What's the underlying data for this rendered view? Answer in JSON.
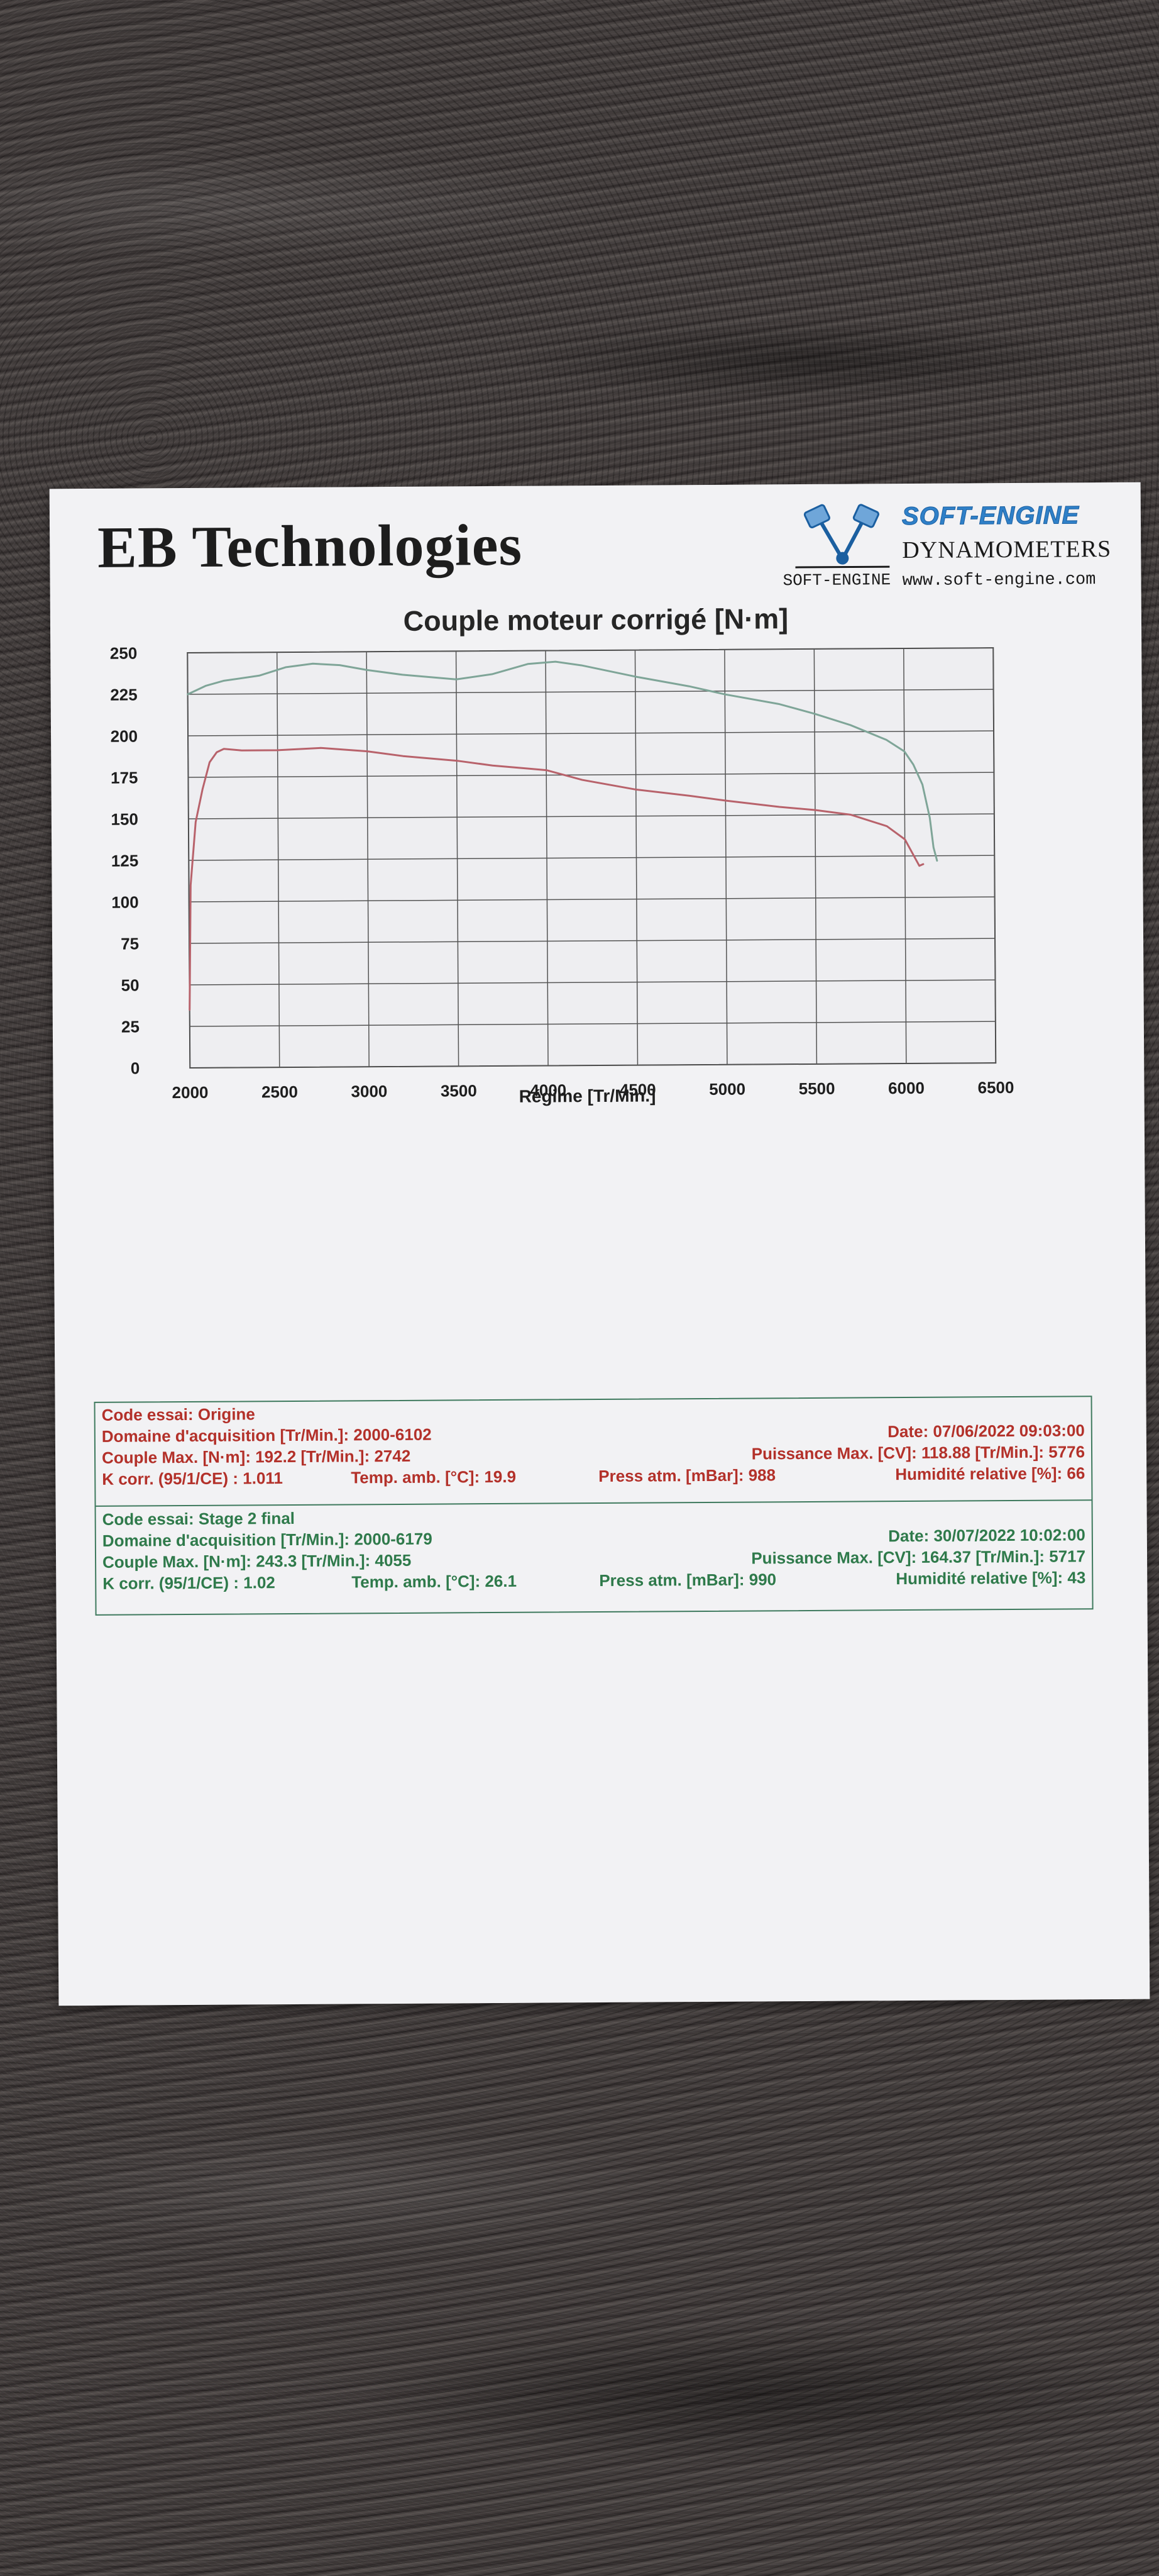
{
  "header": {
    "brand": "EB Technologies",
    "logo": {
      "name": "SOFT-ENGINE",
      "subtitle": "DYNAMOMETERS",
      "small": "SOFT-ENGINE",
      "url": "www.soft-engine.com"
    }
  },
  "chart_data": {
    "type": "line",
    "title": "Couple moteur corrigé [N·m]",
    "xlabel": "Régime [Tr/Min.]",
    "ylabel": "",
    "xlim": [
      2000,
      6500
    ],
    "ylim": [
      0,
      250
    ],
    "xticks": [
      "2000",
      "2500",
      "3000",
      "3500",
      "4000",
      "4500",
      "5000",
      "5500",
      "6000",
      "6500"
    ],
    "yticks": [
      "0",
      "25",
      "50",
      "75",
      "100",
      "125",
      "150",
      "175",
      "200",
      "225",
      "250"
    ],
    "grid": true,
    "series": [
      {
        "color": "#b8626b",
        "x": [
          2000,
          2010,
          2040,
          2080,
          2120,
          2160,
          2200,
          2300,
          2500,
          2742,
          3000,
          3200,
          3500,
          3700,
          3900,
          4000,
          4200,
          4500,
          4800,
          5000,
          5300,
          5500,
          5700,
          5900,
          6000,
          6050,
          6080,
          6102
        ],
        "y": [
          35,
          110,
          148,
          168,
          184,
          190,
          192,
          191,
          191,
          192.2,
          190,
          187,
          184,
          181,
          179,
          178,
          172,
          166,
          162,
          159,
          155,
          153,
          150,
          143,
          135,
          125,
          119,
          120
        ]
      },
      {
        "color": "#7fa598",
        "x": [
          2000,
          2100,
          2200,
          2400,
          2550,
          2700,
          2850,
          3000,
          3200,
          3500,
          3700,
          3900,
          4055,
          4200,
          4500,
          4800,
          5000,
          5300,
          5500,
          5700,
          5900,
          6000,
          6050,
          6100,
          6140,
          6160,
          6179
        ],
        "y": [
          225,
          230,
          233,
          236,
          241,
          243,
          242,
          239,
          236,
          233,
          236,
          242,
          243.3,
          241,
          234,
          228,
          223,
          217,
          211,
          204,
          195,
          188,
          180,
          168,
          148,
          130,
          122
        ]
      }
    ]
  },
  "tests": [
    {
      "code": "Code essai: Origine",
      "domaine": "Domaine d'acquisition [Tr/Min.]: 2000-6102",
      "date": "Date: 07/06/2022   09:03:00",
      "couple": "Couple Max. [N·m]: 192.2   [Tr/Min.]: 2742",
      "puissance": "Puissance Max. [CV]: 118.88   [Tr/Min.]: 5776",
      "kcorr": "K corr. (95/1/CE) : 1.011",
      "temp": "Temp. amb. [°C]: 19.9",
      "press": "Press atm. [mBar]: 988",
      "humid": "Humidité relative [%]: 66"
    },
    {
      "code": "Code essai: Stage 2 final",
      "domaine": "Domaine d'acquisition [Tr/Min.]: 2000-6179",
      "date": "Date: 30/07/2022   10:02:00",
      "couple": "Couple Max. [N·m]: 243.3   [Tr/Min.]: 4055",
      "puissance": "Puissance Max. [CV]: 164.37   [Tr/Min.]: 5717",
      "kcorr": "K corr. (95/1/CE) : 1.02",
      "temp": "Temp. amb. [°C]: 26.1",
      "press": "Press atm. [mBar]: 990",
      "humid": "Humidité relative [%]: 43"
    }
  ]
}
